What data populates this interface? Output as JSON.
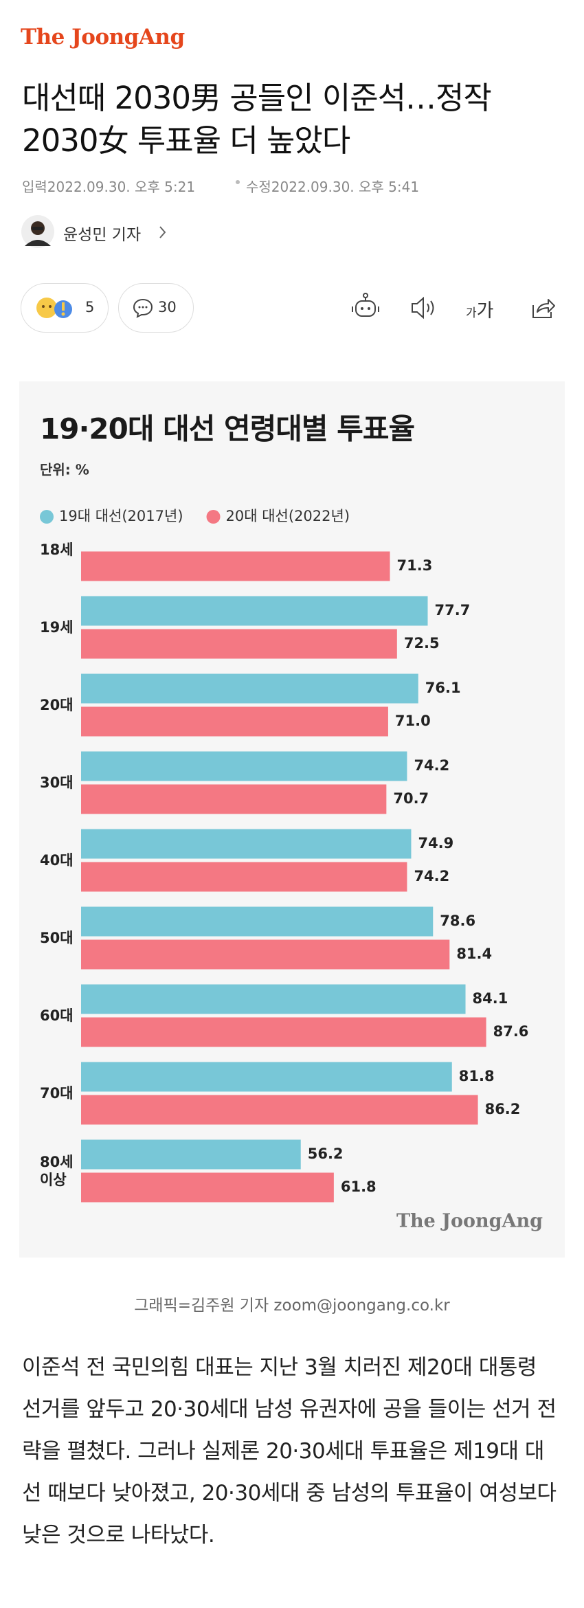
{
  "header": {
    "logo": "The JoongAng",
    "title": "대선때 2030男 공들인 이준석…정작 2030女 투표율 더 높았다",
    "published": "입력2022.09.30. 오후 5:21",
    "modified": "수정2022.09.30. 오후 5:41",
    "author": "윤성민 기자"
  },
  "toolbar": {
    "reactions": "5",
    "comments": "30",
    "font_small": "가",
    "font_large": "가"
  },
  "chart_data": {
    "type": "bar",
    "orientation": "horizontal",
    "title": "19·20대 대선 연령대별 투표율",
    "unit": "단위: %",
    "categories": [
      "18세",
      "19세",
      "20대",
      "30대",
      "40대",
      "50대",
      "60대",
      "70대",
      "80세 이상"
    ],
    "series": [
      {
        "name": "19대 대선(2017년)",
        "color": "#78c7d7",
        "values": [
          null,
          77.7,
          76.1,
          74.2,
          74.9,
          78.6,
          84.1,
          81.8,
          56.2
        ],
        "value_labels": [
          null,
          "77.7",
          "76.1",
          "74.2",
          "74.9",
          "78.6",
          "84.1",
          "81.8",
          "56.2"
        ]
      },
      {
        "name": "20대 대선(2022년)",
        "color": "#f47883",
        "values": [
          71.3,
          72.5,
          71.0,
          70.7,
          74.2,
          81.4,
          87.6,
          86.2,
          61.8
        ],
        "value_labels": [
          "71.3",
          "72.5",
          "71.0",
          "70.7",
          "74.2",
          "81.4",
          "87.6",
          "86.2",
          "61.8"
        ]
      }
    ],
    "xlim": [
      19,
      98
    ],
    "source": "The JoongAng"
  },
  "caption": "그래픽=김주원 기자 zoom@joongang.co.kr",
  "body": "이준석 전 국민의힘 대표는 지난 3월 치러진 제20대 대통령 선거를 앞두고 20·30세대 남성 유권자에 공을 들이는 선거 전략을 펼쳤다. 그러나 실제론 20·30세대 투표율은 제19대 대선 때보다 낮아졌고, 20·30세대 중 남성의 투표율이 여성보다 낮은 것으로 나타났다."
}
